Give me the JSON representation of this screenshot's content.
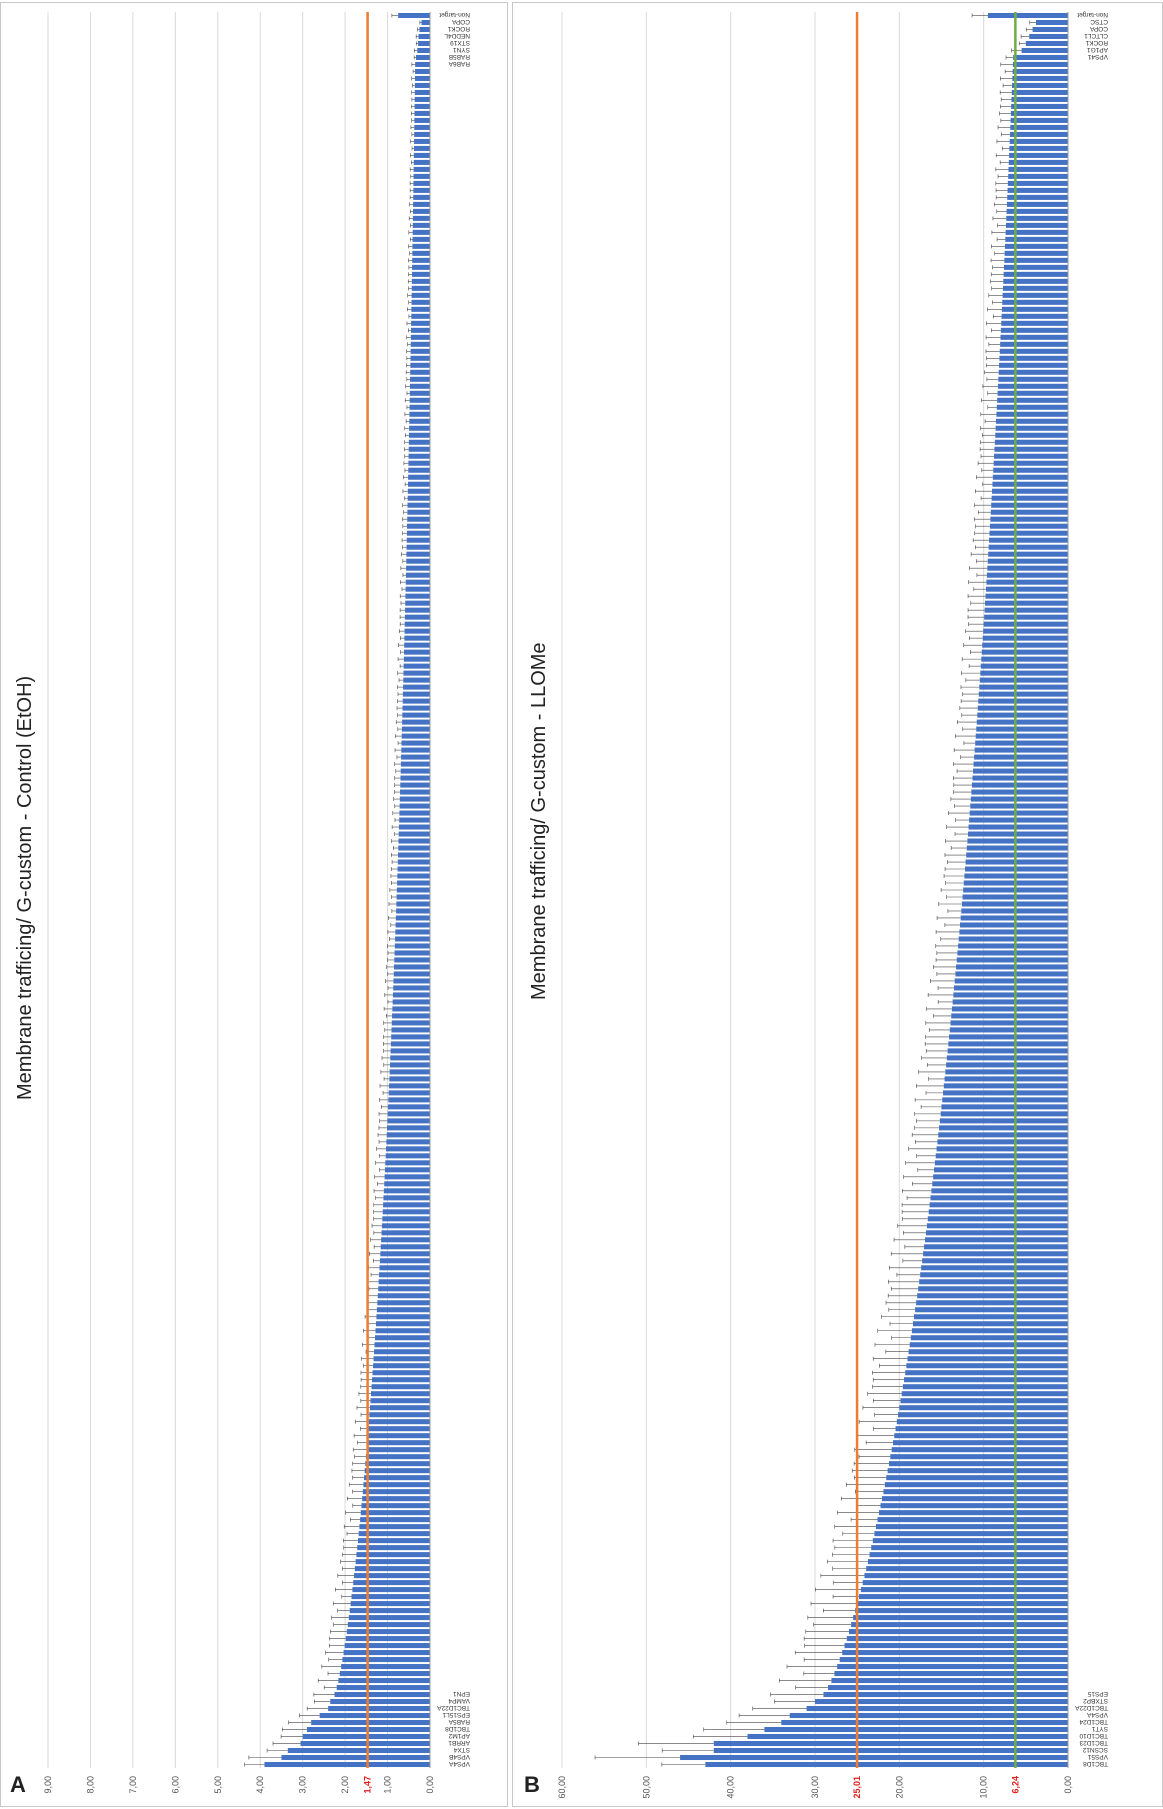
{
  "panels": [
    {
      "letter": "A",
      "title": "Membrane trafficing/ G-custom - Control (EtOH)",
      "chart_data": {
        "type": "bar",
        "orientation": "horizontal",
        "value_axis": {
          "min": 0,
          "max": 9,
          "step": 1,
          "tick_labels": [
            "0,00",
            "1,00",
            "2,00",
            "3,00",
            "4,00",
            "5,00",
            "6,00",
            "7,00",
            "8,00",
            "9,00"
          ]
        },
        "reference_lines": [
          {
            "value": 1.47,
            "label": "1,47",
            "color": "#ed7d31"
          }
        ],
        "series_color": "#4472c4",
        "categories_start": [
          "VPS4A",
          "VPS4B",
          "STX4",
          "ARRB1",
          "AP1M2",
          "TBC1D8",
          "RAB5A",
          "EPS15L1",
          "TBC1D22A",
          "VAMP4",
          "EPN1"
        ],
        "categories_end": [
          "RAB6A",
          "RAB5B",
          "SYN1",
          "STX19",
          "NEDD4L",
          "ROCK1",
          "COPA",
          "Non-target"
        ],
        "sample_values_start": [
          3.9,
          3.5,
          3.35,
          3.05,
          3.0,
          2.9,
          2.8,
          2.6,
          2.4,
          2.35,
          2.25
        ],
        "sample_values_end": [
          0.35,
          0.33,
          0.3,
          0.28,
          0.27,
          0.25,
          0.2,
          0.75
        ],
        "bar_count": 251
      }
    },
    {
      "letter": "B",
      "title": "Membrane trafficing/ G-custom - LLOMe",
      "chart_data": {
        "type": "bar",
        "orientation": "horizontal",
        "value_axis": {
          "min": 0,
          "max": 60,
          "step": 10,
          "tick_labels": [
            "0,00",
            "10,00",
            "20,00",
            "30,00",
            "40,00",
            "50,00",
            "60,00"
          ]
        },
        "reference_lines": [
          {
            "value": 25.01,
            "label": "25,01",
            "color": "#ed7d31"
          },
          {
            "value": 6.24,
            "label": "6,24",
            "color": "#70ad47"
          }
        ],
        "series_color": "#4472c4",
        "categories_start": [
          "TBC1D8",
          "VPS51",
          "SCSN12",
          "TBC1D23",
          "TBC1D10",
          "SYT1",
          "TBC1D24",
          "VPS4A",
          "TBC1D22A",
          "STXBP2",
          "EPS15"
        ],
        "categories_end": [
          "VPS41",
          "AP1G1",
          "ROCK1",
          "CLTCL1",
          "COPA",
          "CTSC",
          "Non-target"
        ],
        "sample_values_start": [
          43,
          46,
          42,
          42,
          38,
          36,
          34,
          33,
          31,
          30,
          29
        ],
        "sample_values_end": [
          6.5,
          5.5,
          5.0,
          4.6,
          4.2,
          3.8,
          9.5
        ],
        "bar_count": 251
      }
    }
  ]
}
